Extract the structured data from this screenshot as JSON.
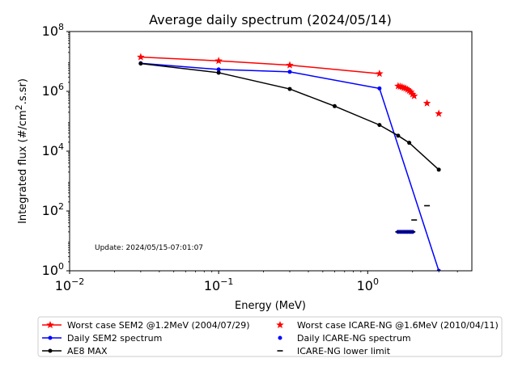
{
  "chart_data": {
    "type": "line",
    "title": "Average daily spectrum (2024/05/14)",
    "xlabel": "Energy (MeV)",
    "ylabel_prefix": "Integrated flux (#/cm",
    "ylabel_sup": "2",
    "ylabel_suffix": ".s.sr)",
    "x_scale": "log",
    "y_scale": "log",
    "xlim": [
      0.01,
      5
    ],
    "ylim": [
      1,
      100000000
    ],
    "x_ticks": [
      {
        "value": 0.01,
        "base": "10",
        "exp": "−2"
      },
      {
        "value": 0.1,
        "base": "10",
        "exp": "−1"
      },
      {
        "value": 1,
        "base": "10",
        "exp": "0"
      }
    ],
    "y_ticks": [
      {
        "value": 1,
        "base": "10",
        "exp": "0"
      },
      {
        "value": 100,
        "base": "10",
        "exp": "2"
      },
      {
        "value": 10000,
        "base": "10",
        "exp": "4"
      },
      {
        "value": 1000000,
        "base": "10",
        "exp": "6"
      },
      {
        "value": 100000000,
        "base": "10",
        "exp": "8"
      }
    ],
    "annotation": "Update: 2024/05/15-07:01:07",
    "legend_position": "below",
    "series": [
      {
        "name": "Worst case SEM2 @1.2MeV (2004/07/29)",
        "color": "#ff0000",
        "style": "line-star",
        "x": [
          0.03,
          0.1,
          0.3,
          1.2
        ],
        "y": [
          14000000,
          10500000,
          7500000,
          3900000
        ]
      },
      {
        "name": "Daily SEM2 spectrum",
        "color": "#0000ff",
        "style": "line-dot",
        "x": [
          0.03,
          0.1,
          0.3,
          1.2,
          3.0
        ],
        "y": [
          8700000,
          5400000,
          4500000,
          1250000,
          1.0
        ]
      },
      {
        "name": "AE8 MAX",
        "color": "#000000",
        "style": "line-dot",
        "x": [
          0.03,
          0.1,
          0.3,
          0.6,
          1.2,
          1.6,
          1.9,
          3.0
        ],
        "y": [
          8500000,
          4200000,
          1200000,
          320000,
          75000,
          33000,
          19000,
          2400
        ]
      },
      {
        "name": "Worst case ICARE-NG @1.6MeV (2010/04/11)",
        "color": "#ff0000",
        "style": "star",
        "x": [
          1.6,
          1.65,
          1.7,
          1.75,
          1.8,
          1.85,
          1.9,
          1.95,
          2.0,
          2.05,
          2.5,
          3.0
        ],
        "y": [
          1500000,
          1450000,
          1400000,
          1300000,
          1250000,
          1150000,
          1050000,
          950000,
          800000,
          700000,
          400000,
          180000
        ]
      },
      {
        "name": "Daily ICARE-NG spectrum",
        "color": "#0000ff",
        "style": "dot",
        "x": [
          1.6,
          1.65,
          1.7,
          1.75,
          1.8,
          1.85,
          1.9,
          1.95,
          2.0
        ],
        "y": [
          20,
          20,
          20,
          20,
          20,
          20,
          20,
          20,
          20
        ]
      },
      {
        "name": "ICARE-NG lower limit",
        "color": "#000000",
        "style": "dash",
        "x": [
          1.6,
          1.65,
          1.7,
          1.75,
          1.8,
          1.85,
          1.9,
          1.95,
          2.0,
          2.05,
          2.5
        ],
        "y": [
          20,
          20,
          20,
          20,
          20,
          20,
          20,
          20,
          20,
          50,
          150
        ]
      }
    ]
  }
}
